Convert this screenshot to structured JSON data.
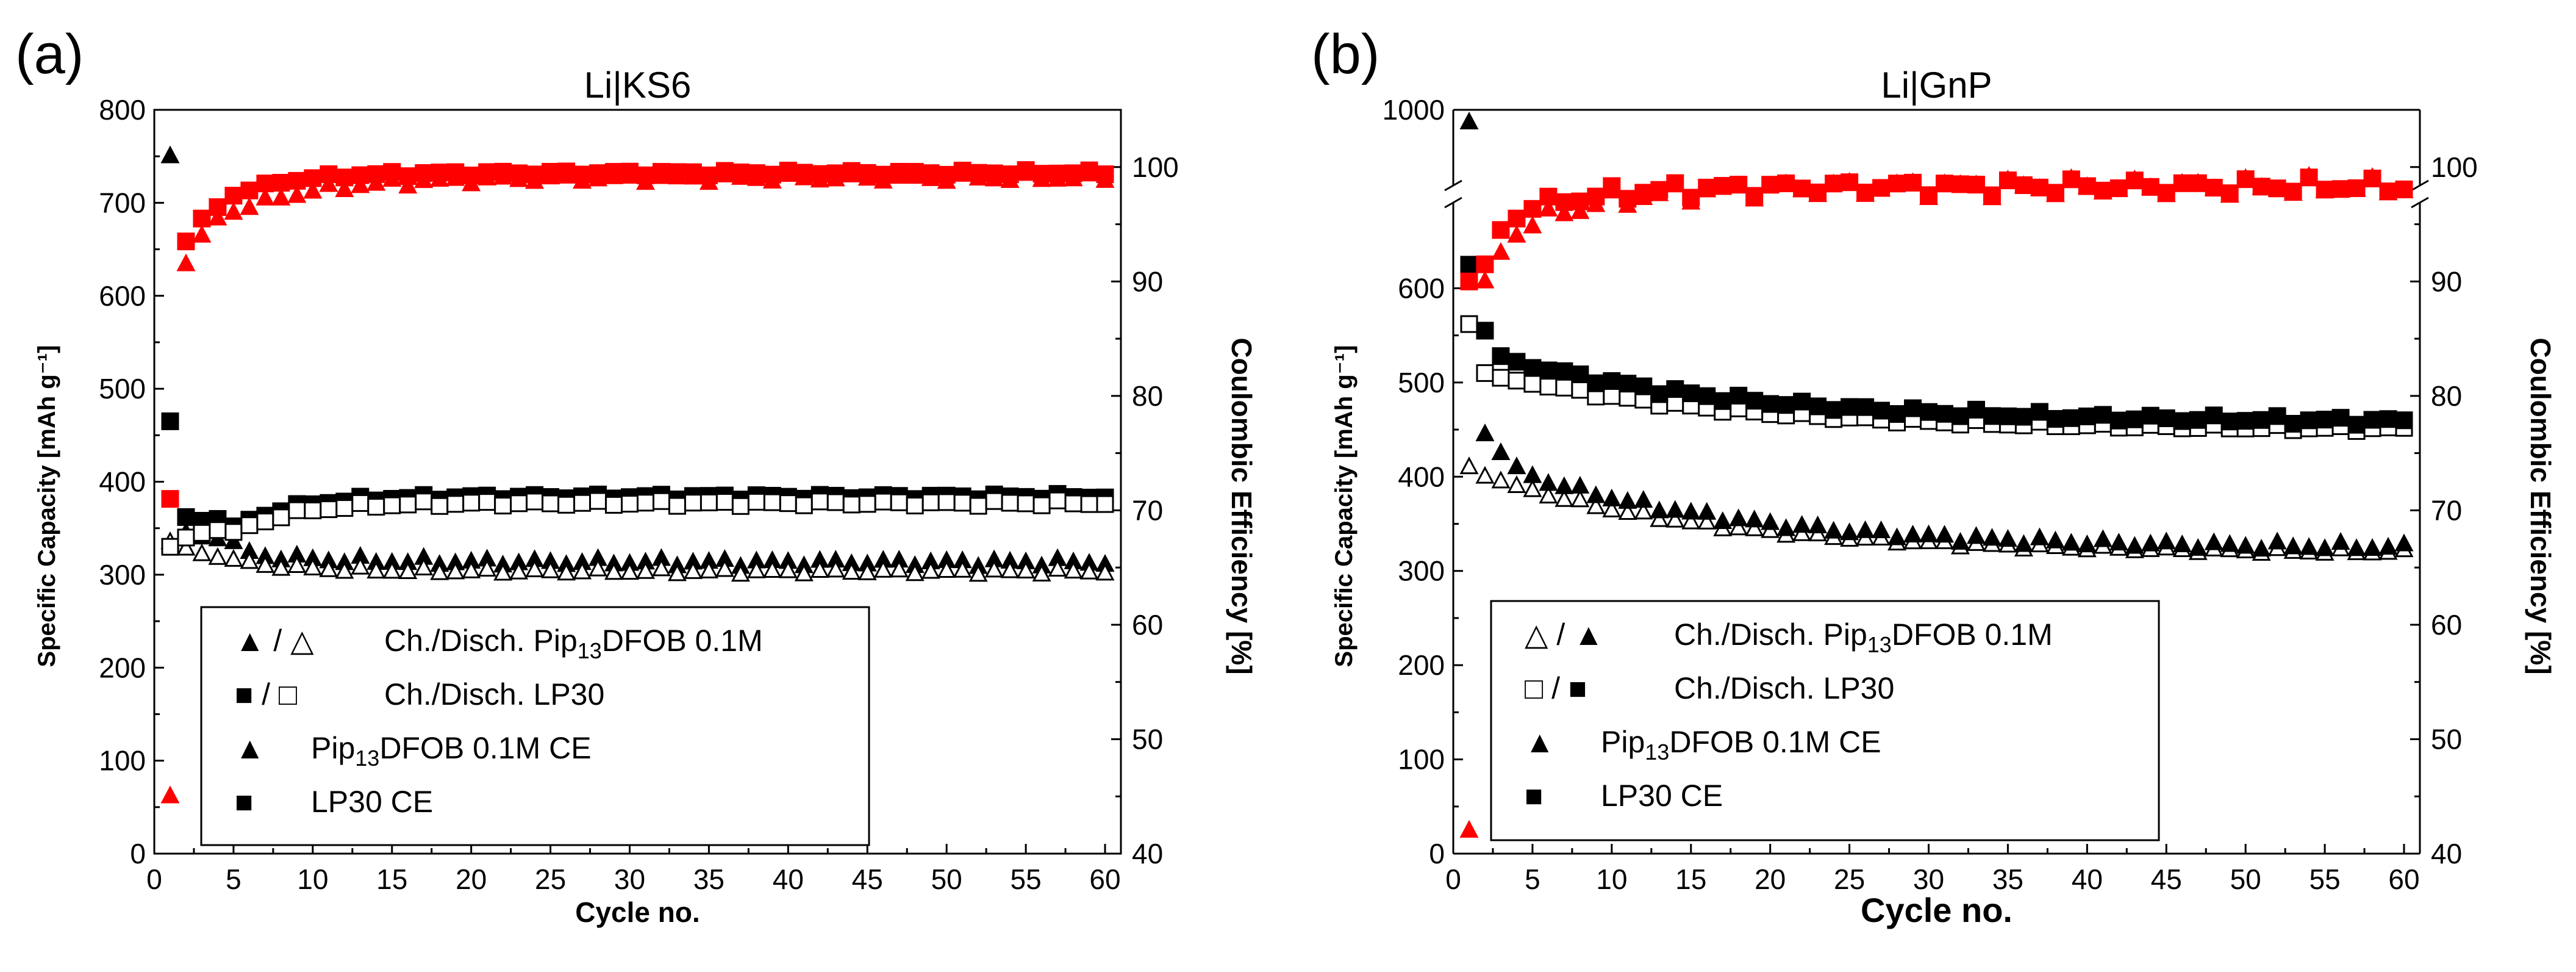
{
  "chart_data": [
    {
      "panel_label": "(a)",
      "type": "scatter",
      "title": "Li|KS6",
      "xlabel": "Cycle no.",
      "ylabel": "Specific Capacity [mAh g⁻¹]",
      "y2label": "Coulombic Efficiency [%]",
      "xlim": [
        0,
        61
      ],
      "ylim": [
        0,
        800
      ],
      "y2lim": [
        40,
        105
      ],
      "xticks": [
        "0",
        "5",
        "10",
        "15",
        "20",
        "25",
        "30",
        "35",
        "40",
        "45",
        "50",
        "55",
        "60"
      ],
      "yticks": [
        "0",
        "100",
        "200",
        "300",
        "400",
        "500",
        "600",
        "700",
        "800"
      ],
      "y2ticks": [
        "40",
        "50",
        "60",
        "70",
        "80",
        "90",
        "100"
      ],
      "grid": false,
      "legend_position": "bottom-left",
      "legend": [
        {
          "symbols": "▲  /  △",
          "text": "Ch./Disch. Pip",
          "sub": "13",
          "text2": "DFOB 0.1M",
          "color": "#000000"
        },
        {
          "symbols": "■  /  □",
          "text": "Ch./Disch. LP30",
          "sub": "",
          "text2": "",
          "color": "#000000"
        },
        {
          "symbols": "▲",
          "text": "Pip",
          "sub": "13",
          "text2": "DFOB 0.1M CE",
          "color": "#ff0000"
        },
        {
          "symbols": "■",
          "text": "LP30 CE",
          "sub": "",
          "text2": "",
          "color": "#ff0000"
        }
      ],
      "series": [
        {
          "name": "Ch./Disch. Pip13DFOB 0.1M (charge)",
          "marker": "triangle",
          "filled": true,
          "color": "#000000",
          "axis": "left",
          "first": [
            750,
            345,
            340,
            338,
            335
          ],
          "model": {
            "start": 6,
            "count": 55,
            "from": 322,
            "to": 313,
            "rate": 0.25,
            "jitter": 3
          }
        },
        {
          "name": "Ch./Disch. Pip13DFOB 0.1M (discharge)",
          "marker": "triangle",
          "filled": false,
          "color": "#000000",
          "axis": "left",
          "first": [
            335,
            328,
            322,
            318,
            316
          ],
          "model": {
            "start": 6,
            "count": 55,
            "from": 312,
            "to": 303,
            "rate": 0.25,
            "jitter": 2
          }
        },
        {
          "name": "Ch./Disch. LP30 (charge)",
          "marker": "square",
          "filled": true,
          "color": "#000000",
          "axis": "left",
          "first": [
            465,
            362,
            358,
            360,
            352
          ],
          "model": {
            "start": 6,
            "count": 55,
            "from": 358,
            "to": 384,
            "rate": 0.3,
            "jitter": 2
          }
        },
        {
          "name": "Ch./Disch. LP30 (discharge)",
          "marker": "square",
          "filled": false,
          "color": "#000000",
          "axis": "left",
          "first": [
            330,
            340,
            345,
            348,
            346
          ],
          "model": {
            "start": 6,
            "count": 55,
            "from": 352,
            "to": 377,
            "rate": 0.3,
            "jitter": 2
          }
        },
        {
          "name": "Pip13DFOB 0.1M CE",
          "marker": "triangle",
          "filled": true,
          "color": "#ff0000",
          "axis": "right",
          "first": [
            45,
            91.5,
            94,
            95.5,
            96
          ],
          "model": {
            "start": 6,
            "count": 55,
            "from": 96.5,
            "to": 99,
            "rate": 0.2,
            "jitter": 0.25
          }
        },
        {
          "name": "LP30 CE",
          "marker": "square",
          "filled": true,
          "color": "#ff0000",
          "axis": "right",
          "first": [
            71,
            93.5,
            95.5,
            96.5,
            97.5
          ],
          "model": {
            "start": 6,
            "count": 55,
            "from": 98,
            "to": 99.5,
            "rate": 0.3,
            "jitter": 0.15
          }
        }
      ]
    },
    {
      "panel_label": "(b)",
      "type": "scatter",
      "title": "Li|GnP",
      "xlabel": "Cycle no.",
      "ylabel": "Specific Capacity [mAh g⁻¹]",
      "y2label": "Coulombic Efficiency [%]",
      "xlim": [
        0,
        61
      ],
      "ylim": [
        0,
        1000
      ],
      "y_axis_break": true,
      "y2lim": [
        40,
        105
      ],
      "xticks": [
        "0",
        "5",
        "10",
        "15",
        "20",
        "25",
        "30",
        "35",
        "40",
        "45",
        "50",
        "55",
        "60"
      ],
      "yticks": [
        "0",
        "100",
        "200",
        "300",
        "400",
        "500",
        "600",
        "1000"
      ],
      "y2ticks": [
        "40",
        "50",
        "60",
        "70",
        "80",
        "90",
        "100"
      ],
      "grid": false,
      "legend_position": "bottom-left",
      "legend": [
        {
          "symbols": "△  /  ▲",
          "text": "Ch./Disch. Pip",
          "sub": "13",
          "text2": "DFOB 0.1M",
          "color": "#000000"
        },
        {
          "symbols": "□  /  ■",
          "text": "Ch./Disch. LP30",
          "sub": "",
          "text2": "",
          "color": "#000000"
        },
        {
          "symbols": "▲",
          "text": "Pip",
          "sub": "13",
          "text2": "DFOB 0.1M CE",
          "color": "#ff0000"
        },
        {
          "symbols": "■",
          "text": "LP30 CE",
          "sub": "",
          "text2": "",
          "color": "#ff0000"
        }
      ],
      "series": [
        {
          "name": "Ch./Disch. Pip13DFOB 0.1M (charge)",
          "marker": "triangle",
          "filled": false,
          "color": "#000000",
          "axis": "left",
          "first": [
            410,
            400,
            395,
            390
          ],
          "model": {
            "start": 5,
            "count": 56,
            "from": 385,
            "to": 318,
            "rate": 0.07,
            "jitter": 2
          }
        },
        {
          "name": "Ch./Disch. Pip13DFOB 0.1M (discharge)",
          "marker": "triangle",
          "filled": true,
          "color": "#000000",
          "axis": "left",
          "first": [
            955,
            445,
            425,
            410
          ],
          "model": {
            "start": 5,
            "count": 56,
            "from": 400,
            "to": 323,
            "rate": 0.07,
            "jitter": 3
          }
        },
        {
          "name": "Ch./Disch. LP30 (charge)",
          "marker": "square",
          "filled": false,
          "color": "#000000",
          "axis": "left",
          "first": [
            562,
            510,
            505,
            502
          ],
          "model": {
            "start": 5,
            "count": 56,
            "from": 500,
            "to": 450,
            "rate": 0.07,
            "jitter": 2
          }
        },
        {
          "name": "Ch./Disch. LP30 (discharge)",
          "marker": "square",
          "filled": true,
          "color": "#000000",
          "axis": "left",
          "first": [
            625,
            555,
            528,
            522
          ],
          "model": {
            "start": 5,
            "count": 56,
            "from": 518,
            "to": 458,
            "rate": 0.07,
            "jitter": 3
          }
        },
        {
          "name": "Pip13DFOB 0.1M CE",
          "marker": "triangle",
          "filled": true,
          "color": "#ff0000",
          "axis": "right",
          "first": [
            42,
            90,
            92.5,
            94
          ],
          "model": {
            "start": 5,
            "count": 56,
            "from": 95,
            "to": 98.2,
            "rate": 0.2,
            "jitter": 0.6
          }
        },
        {
          "name": "LP30 CE",
          "marker": "square",
          "filled": true,
          "color": "#ff0000",
          "axis": "right",
          "first": [
            90,
            91.5,
            94.5,
            95.5
          ],
          "model": {
            "start": 5,
            "count": 56,
            "from": 96.5,
            "to": 98.3,
            "rate": 0.2,
            "jitter": 0.5
          }
        }
      ]
    }
  ]
}
